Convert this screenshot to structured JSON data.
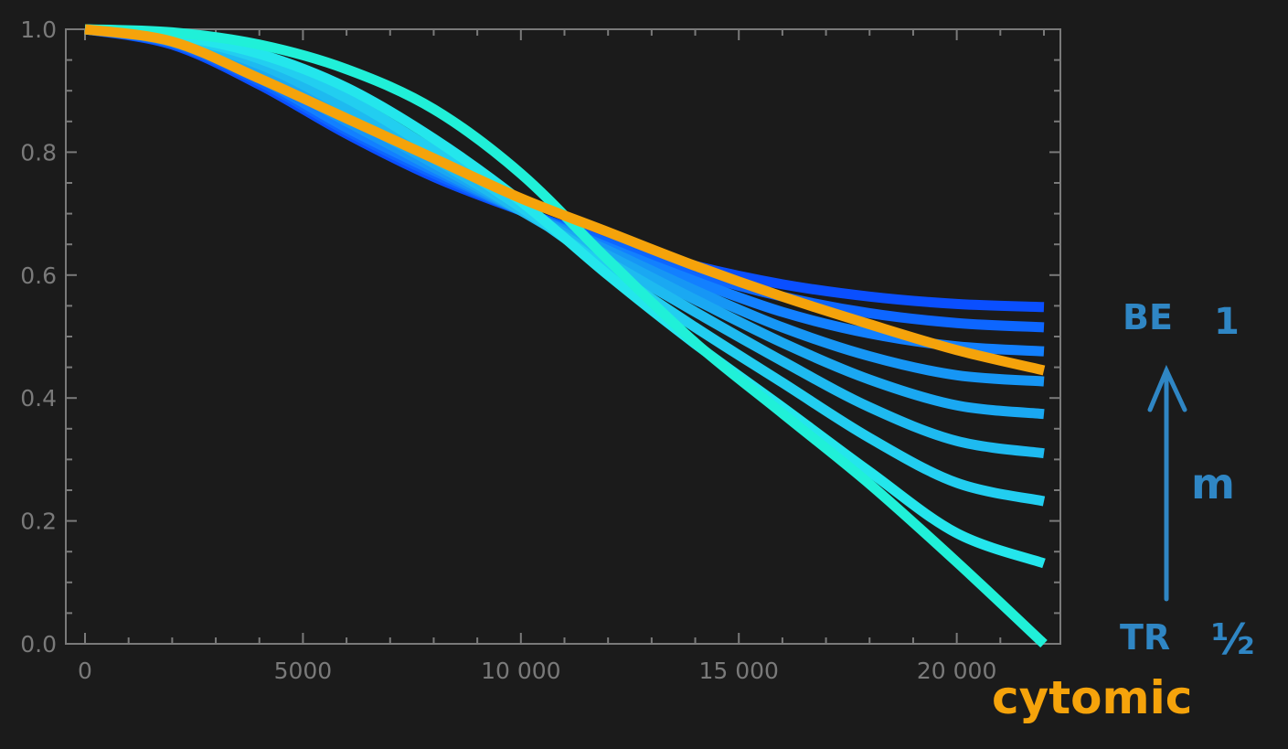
{
  "chart_data": {
    "type": "line",
    "xlim": [
      0,
      22000
    ],
    "ylim": [
      0,
      1
    ],
    "x_ticks": [
      0,
      5000,
      10000,
      15000,
      20000
    ],
    "x_tick_labels": [
      "0",
      "5000",
      "10 000",
      "15 000",
      "20 000"
    ],
    "y_ticks": [
      0,
      0.2,
      0.4,
      0.6,
      0.8,
      1.0
    ],
    "y_tick_labels": [
      "0.0",
      "0.2",
      "0.4",
      "0.6",
      "0.8",
      "1.0"
    ],
    "grid": false,
    "x": [
      0,
      2000,
      4000,
      6000,
      8000,
      10000,
      12000,
      14000,
      16000,
      18000,
      20000,
      22000
    ],
    "series": [
      {
        "color": "#0a4fff",
        "values": [
          1.0,
          0.975,
          0.91,
          0.83,
          0.76,
          0.705,
          0.655,
          0.615,
          0.585,
          0.565,
          0.553,
          0.548
        ]
      },
      {
        "color": "#0d66ff",
        "values": [
          1.0,
          0.977,
          0.915,
          0.835,
          0.765,
          0.705,
          0.652,
          0.603,
          0.565,
          0.538,
          0.522,
          0.515
        ]
      },
      {
        "color": "#1280ff",
        "values": [
          1.0,
          0.979,
          0.92,
          0.84,
          0.77,
          0.705,
          0.645,
          0.59,
          0.54,
          0.505,
          0.484,
          0.476
        ]
      },
      {
        "color": "#1696f5",
        "values": [
          1.0,
          0.981,
          0.927,
          0.85,
          0.775,
          0.705,
          0.64,
          0.575,
          0.515,
          0.468,
          0.437,
          0.427
        ]
      },
      {
        "color": "#1aa8f2",
        "values": [
          1.0,
          0.983,
          0.935,
          0.86,
          0.782,
          0.705,
          0.632,
          0.56,
          0.49,
          0.43,
          0.388,
          0.374
        ]
      },
      {
        "color": "#1ebaf0",
        "values": [
          1.0,
          0.985,
          0.943,
          0.872,
          0.79,
          0.705,
          0.622,
          0.54,
          0.46,
          0.385,
          0.33,
          0.31
        ]
      },
      {
        "color": "#22cef0",
        "values": [
          1.0,
          0.988,
          0.952,
          0.888,
          0.803,
          0.71,
          0.61,
          0.515,
          0.425,
          0.335,
          0.262,
          0.232
        ]
      },
      {
        "color": "#24e6ec",
        "values": [
          1.0,
          0.99,
          0.96,
          0.905,
          0.822,
          0.72,
          0.6,
          0.488,
          0.385,
          0.28,
          0.18,
          0.131
        ]
      },
      {
        "color": "#20f0d8",
        "values": [
          1.0,
          0.995,
          0.975,
          0.935,
          0.87,
          0.765,
          0.625,
          0.49,
          0.375,
          0.26,
          0.133,
          0.0
        ]
      },
      {
        "color": "#f5a30b",
        "values": [
          1.0,
          0.98,
          0.92,
          0.855,
          0.79,
          0.725,
          0.67,
          0.615,
          0.565,
          0.52,
          0.478,
          0.445
        ]
      }
    ],
    "annotations": {
      "top_label": "BE",
      "top_value": "1",
      "middle_label": "m",
      "bottom_label": "TR",
      "bottom_value": "½"
    },
    "logo": "cytomic"
  }
}
